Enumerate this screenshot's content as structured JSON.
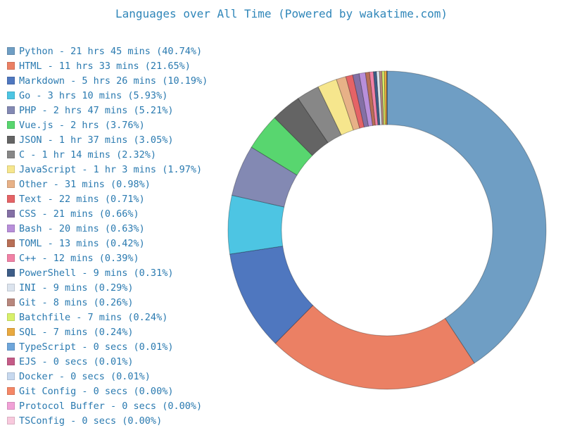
{
  "chart_data": {
    "type": "pie",
    "title": "Languages over All Time (Powered by wakatime.com)",
    "legend_position": "left",
    "series": [
      {
        "name": "Python - 21 hrs 45 mins (40.74%)",
        "value": 40.74,
        "color": "#6f9ec4"
      },
      {
        "name": "HTML - 11 hrs 33 mins (21.65%)",
        "value": 21.65,
        "color": "#eb8064"
      },
      {
        "name": "Markdown - 5 hrs 26 mins (10.19%)",
        "value": 10.19,
        "color": "#4f77bf"
      },
      {
        "name": "Go - 3 hrs 10 mins (5.93%)",
        "value": 5.93,
        "color": "#4dc5e3"
      },
      {
        "name": "PHP - 2 hrs 47 mins (5.21%)",
        "value": 5.21,
        "color": "#8389b3"
      },
      {
        "name": "Vue.js - 2 hrs (3.76%)",
        "value": 3.76,
        "color": "#58d66f"
      },
      {
        "name": "JSON - 1 hr 37 mins (3.05%)",
        "value": 3.05,
        "color": "#646464"
      },
      {
        "name": "C - 1 hr 14 mins (2.32%)",
        "value": 2.32,
        "color": "#878787"
      },
      {
        "name": "JavaScript - 1 hr 3 mins (1.97%)",
        "value": 1.97,
        "color": "#f6e68d"
      },
      {
        "name": "Other - 31 mins (0.98%)",
        "value": 0.98,
        "color": "#e7b187"
      },
      {
        "name": "Text - 22 mins (0.71%)",
        "value": 0.71,
        "color": "#e56366"
      },
      {
        "name": "CSS - 21 mins (0.66%)",
        "value": 0.66,
        "color": "#8470a5"
      },
      {
        "name": "Bash - 20 mins (0.63%)",
        "value": 0.63,
        "color": "#b88fda"
      },
      {
        "name": "TOML - 13 mins (0.42%)",
        "value": 0.42,
        "color": "#b86f56"
      },
      {
        "name": "C++ - 12 mins (0.39%)",
        "value": 0.39,
        "color": "#f181a5"
      },
      {
        "name": "PowerShell - 9 mins (0.31%)",
        "value": 0.31,
        "color": "#3d5d87"
      },
      {
        "name": "INI - 9 mins (0.29%)",
        "value": 0.29,
        "color": "#dce4ee"
      },
      {
        "name": "Git - 8 mins (0.26%)",
        "value": 0.26,
        "color": "#b7877d"
      },
      {
        "name": "Batchfile - 7 mins (0.24%)",
        "value": 0.24,
        "color": "#d8f06a"
      },
      {
        "name": "SQL - 7 mins (0.24%)",
        "value": 0.24,
        "color": "#e9a93f"
      },
      {
        "name": "TypeScript - 0 secs (0.01%)",
        "value": 0.01,
        "color": "#6ea6db"
      },
      {
        "name": "EJS - 0 secs (0.01%)",
        "value": 0.01,
        "color": "#c45b87"
      },
      {
        "name": "Docker - 0 secs (0.01%)",
        "value": 0.01,
        "color": "#c7d9ef"
      },
      {
        "name": "Git Config - 0 secs (0.00%)",
        "value": 0.0,
        "color": "#f58766"
      },
      {
        "name": "Protocol Buffer - 0 secs (0.00%)",
        "value": 0.0,
        "color": "#f1a1d7"
      },
      {
        "name": "TSConfig - 0 secs (0.00%)",
        "value": 0.0,
        "color": "#f8c9dd"
      }
    ]
  }
}
